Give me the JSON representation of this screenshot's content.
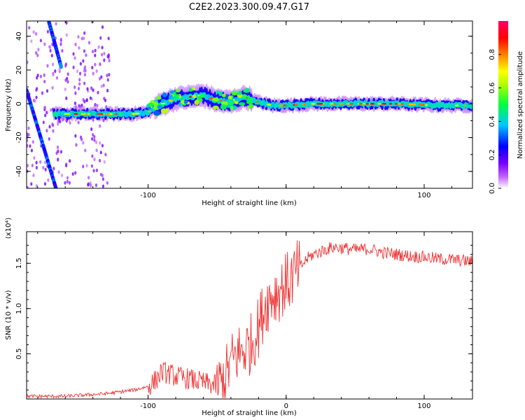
{
  "title": "C2E2.2023.300.09.47.G17",
  "chart_data": [
    {
      "type": "heatmap",
      "xlabel": "Height of straight line (km)",
      "ylabel": "Frequency (Hz)",
      "xlim": [
        -188,
        135
      ],
      "ylim": [
        -50,
        49
      ],
      "xticks": [
        -100,
        0,
        100
      ],
      "xtick_labels": [
        "-100",
        "",
        "100"
      ],
      "yticks": [
        -40,
        -20,
        0,
        20,
        40
      ],
      "ytick_labels": [
        "-40",
        "-20",
        "0",
        "20",
        "40"
      ],
      "colorbar": {
        "label": "Normalized spectral amplitude",
        "range": [
          0,
          1
        ],
        "ticks": [
          0.0,
          0.2,
          0.4,
          0.6,
          0.8
        ],
        "tick_labels": [
          "0.0",
          "0.2",
          "0.4",
          "0.6",
          "0.8"
        ],
        "colors": [
          "#ffffff",
          "#8a00ff",
          "#0000ff",
          "#00c8ff",
          "#00ff40",
          "#ffff00",
          "#ff6600",
          "#ff0000",
          "#ff0066"
        ]
      },
      "ridge": {
        "x": [
          -168,
          -150,
          -130,
          -110,
          -100,
          -90,
          -80,
          -70,
          -60,
          -50,
          -40,
          -30,
          -20,
          -10,
          0,
          20,
          50,
          80,
          110,
          135
        ],
        "y": [
          -6,
          -6,
          -6,
          -6,
          -5,
          0,
          3,
          4,
          5,
          2,
          1,
          4,
          1,
          -1,
          -1,
          0,
          0,
          0,
          -1,
          -1
        ]
      },
      "diagonal_tracks": [
        {
          "x": [
            -188,
            -166
          ],
          "y": [
            8,
            -52
          ]
        },
        {
          "x": [
            -173,
            -163
          ],
          "y": [
            52,
            22
          ]
        }
      ],
      "grid": false
    },
    {
      "type": "line",
      "xlabel": "Height of straight line (km)",
      "ylabel": "SNR (10 * v/v)",
      "y_multiplier": "(x10⁴)",
      "xlim": [
        -188,
        135
      ],
      "ylim": [
        0,
        1.85
      ],
      "xticks": [
        -100,
        0,
        100
      ],
      "xtick_labels": [
        "-100",
        "0",
        "100"
      ],
      "yticks": [
        0.5,
        1.0,
        1.5
      ],
      "ytick_labels": [
        "0.5",
        "1.0",
        "1.5"
      ],
      "series": [
        {
          "color": "#ee3333",
          "x": [
            -188,
            -160,
            -130,
            -110,
            -100,
            -95,
            -90,
            -85,
            -80,
            -70,
            -60,
            -50,
            -45,
            -40,
            -35,
            -30,
            -25,
            -20,
            -15,
            -10,
            -5,
            0,
            5,
            10,
            15,
            20,
            25,
            30,
            35,
            40,
            50,
            60,
            70,
            80,
            90,
            100,
            110,
            120,
            135
          ],
          "y": [
            0.03,
            0.03,
            0.06,
            0.1,
            0.14,
            0.2,
            0.3,
            0.28,
            0.25,
            0.22,
            0.18,
            0.15,
            0.2,
            0.4,
            0.5,
            0.55,
            0.62,
            0.8,
            1.05,
            1.15,
            1.2,
            1.28,
            1.35,
            1.45,
            1.55,
            1.6,
            1.63,
            1.66,
            1.68,
            1.67,
            1.65,
            1.66,
            1.62,
            1.6,
            1.58,
            1.57,
            1.55,
            1.54,
            1.52
          ]
        }
      ]
    }
  ]
}
